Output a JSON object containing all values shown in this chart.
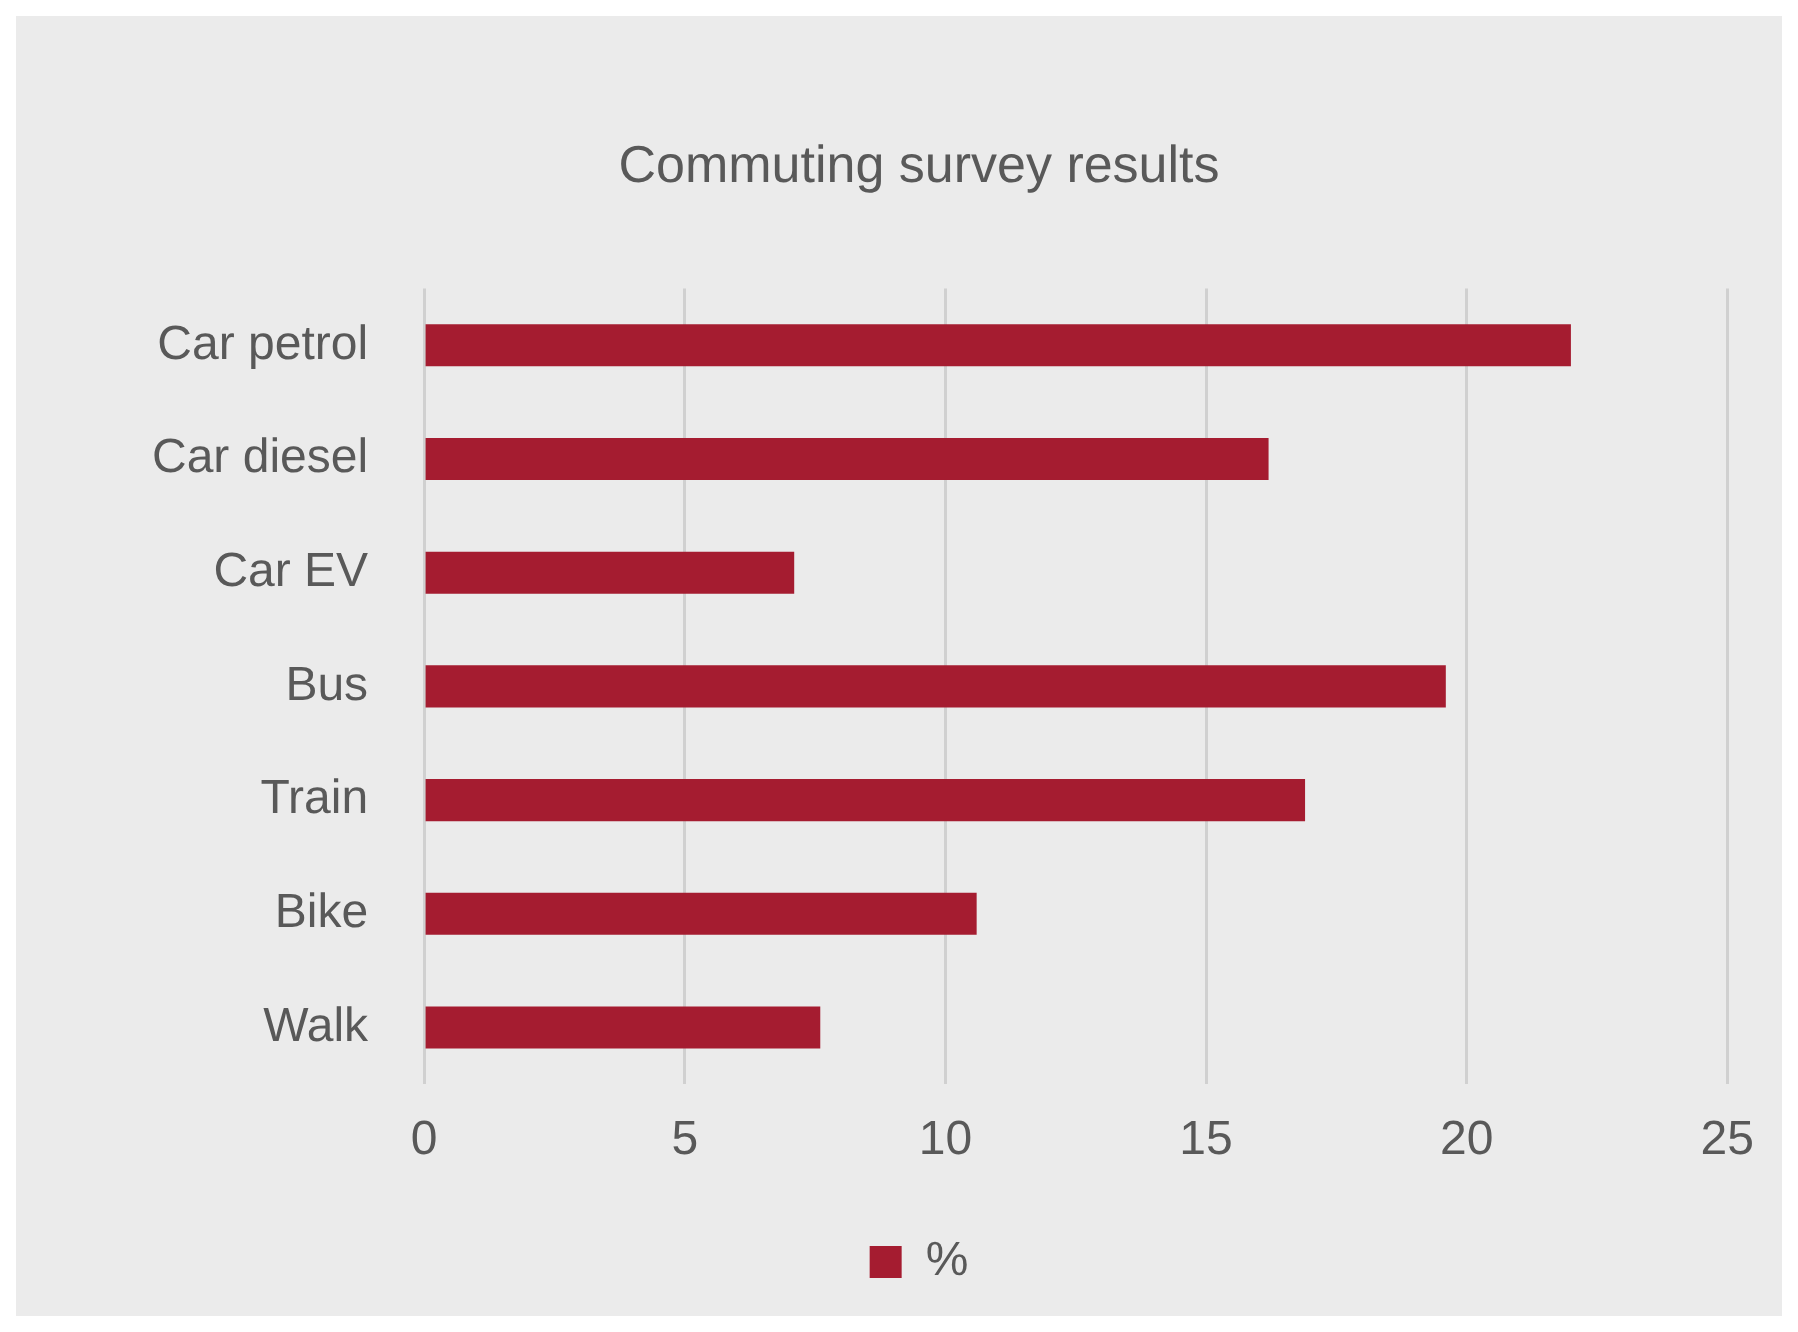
{
  "chart_data": {
    "type": "bar",
    "orientation": "horizontal",
    "title": "Commuting survey results",
    "categories": [
      "Car petrol",
      "Car diesel",
      "Car EV",
      "Bus",
      "Train",
      "Bike",
      "Walk"
    ],
    "series": [
      {
        "name": "%",
        "color": "#a51c30",
        "values": [
          22.0,
          16.2,
          7.1,
          19.6,
          16.9,
          10.6,
          7.6
        ]
      }
    ],
    "xlim": [
      0,
      25
    ],
    "xticks": [
      0,
      5,
      10,
      15,
      20,
      25
    ],
    "grid": "x",
    "legend": "bottom"
  }
}
